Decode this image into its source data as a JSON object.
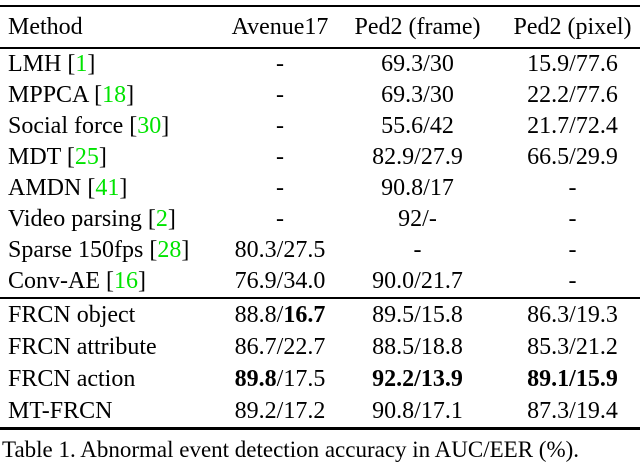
{
  "page": {
    "background": "#ffffff",
    "text_color": "#000000"
  },
  "table": {
    "citation_color": "#00e400",
    "columns": [
      {
        "label": "Method"
      },
      {
        "label": "Avenue17"
      },
      {
        "label": "Ped2 (frame)"
      },
      {
        "label": "Ped2 (pixel)"
      }
    ],
    "groups": [
      {
        "rows": [
          {
            "method": "LMH",
            "cite": "1",
            "cells": [
              [
                {
                  "text": "-",
                  "bold": false
                }
              ],
              [
                {
                  "text": "69.3/30",
                  "bold": false
                }
              ],
              [
                {
                  "text": "15.9/77.6",
                  "bold": false
                }
              ]
            ]
          },
          {
            "method": "MPPCA",
            "cite": "18",
            "cells": [
              [
                {
                  "text": "-",
                  "bold": false
                }
              ],
              [
                {
                  "text": "69.3/30",
                  "bold": false
                }
              ],
              [
                {
                  "text": "22.2/77.6",
                  "bold": false
                }
              ]
            ]
          },
          {
            "method": "Social force",
            "cite": "30",
            "cells": [
              [
                {
                  "text": "-",
                  "bold": false
                }
              ],
              [
                {
                  "text": "55.6/42",
                  "bold": false
                }
              ],
              [
                {
                  "text": "21.7/72.4",
                  "bold": false
                }
              ]
            ]
          },
          {
            "method": "MDT",
            "cite": "25",
            "cells": [
              [
                {
                  "text": "-",
                  "bold": false
                }
              ],
              [
                {
                  "text": "82.9/27.9",
                  "bold": false
                }
              ],
              [
                {
                  "text": "66.5/29.9",
                  "bold": false
                }
              ]
            ]
          },
          {
            "method": "AMDN",
            "cite": "41",
            "cells": [
              [
                {
                  "text": "-",
                  "bold": false
                }
              ],
              [
                {
                  "text": "90.8/17",
                  "bold": false
                }
              ],
              [
                {
                  "text": "-",
                  "bold": false
                }
              ]
            ]
          },
          {
            "method": "Video parsing",
            "cite": "2",
            "cells": [
              [
                {
                  "text": "-",
                  "bold": false
                }
              ],
              [
                {
                  "text": "92/-",
                  "bold": false
                }
              ],
              [
                {
                  "text": "-",
                  "bold": false
                }
              ]
            ]
          },
          {
            "method": "Sparse 150fps",
            "cite": "28",
            "cells": [
              [
                {
                  "text": "80.3/27.5",
                  "bold": false
                }
              ],
              [
                {
                  "text": "-",
                  "bold": false
                }
              ],
              [
                {
                  "text": "-",
                  "bold": false
                }
              ]
            ]
          },
          {
            "method": "Conv-AE",
            "cite": "16",
            "cells": [
              [
                {
                  "text": "76.9/34.0",
                  "bold": false
                }
              ],
              [
                {
                  "text": "90.0/21.7",
                  "bold": false
                }
              ],
              [
                {
                  "text": "-",
                  "bold": false
                }
              ]
            ]
          }
        ]
      },
      {
        "rows": [
          {
            "method": "FRCN object",
            "cite": null,
            "cells": [
              [
                {
                  "text": "88.8/",
                  "bold": false
                },
                {
                  "text": "16.7",
                  "bold": true
                }
              ],
              [
                {
                  "text": "89.5/15.8",
                  "bold": false
                }
              ],
              [
                {
                  "text": "86.3/19.3",
                  "bold": false
                }
              ]
            ]
          },
          {
            "method": "FRCN attribute",
            "cite": null,
            "cells": [
              [
                {
                  "text": "86.7/22.7",
                  "bold": false
                }
              ],
              [
                {
                  "text": "88.5/18.8",
                  "bold": false
                }
              ],
              [
                {
                  "text": "85.3/21.2",
                  "bold": false
                }
              ]
            ]
          },
          {
            "method": "FRCN action",
            "cite": null,
            "cells": [
              [
                {
                  "text": "89.8",
                  "bold": true
                },
                {
                  "text": "/17.5",
                  "bold": false
                }
              ],
              [
                {
                  "text": "92.2/13.9",
                  "bold": true
                }
              ],
              [
                {
                  "text": "89.1/15.9",
                  "bold": true
                }
              ]
            ]
          },
          {
            "method": "MT-FRCN",
            "cite": null,
            "cells": [
              [
                {
                  "text": "89.2/17.2",
                  "bold": false
                }
              ],
              [
                {
                  "text": "90.8/17.1",
                  "bold": false
                }
              ],
              [
                {
                  "text": "87.3/19.4",
                  "bold": false
                }
              ]
            ]
          }
        ]
      }
    ]
  },
  "caption": "Table 1. Abnormal event detection accuracy in AUC/EER (%)."
}
